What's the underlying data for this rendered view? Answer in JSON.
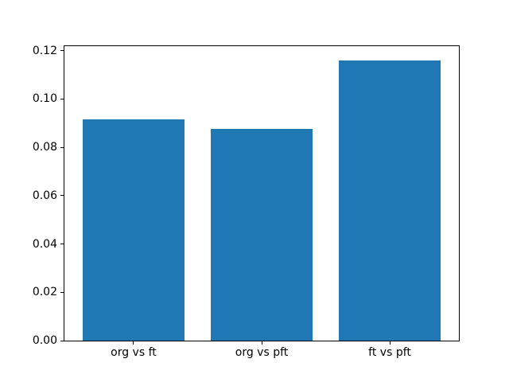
{
  "chart_data": {
    "type": "bar",
    "categories": [
      "org vs ft",
      "org vs pft",
      "ft vs pft"
    ],
    "values": [
      0.0915,
      0.0878,
      0.1161
    ],
    "title": "",
    "xlabel": "",
    "ylabel": "",
    "ylim": [
      0,
      0.1219
    ],
    "xlim": [
      -0.54,
      2.54
    ],
    "yticks": [
      0.0,
      0.02,
      0.04,
      0.06,
      0.08,
      0.1,
      0.12
    ],
    "ytick_labels": [
      "0.00",
      "0.02",
      "0.04",
      "0.06",
      "0.08",
      "0.10",
      "0.12"
    ],
    "bar_width_fraction": 0.8,
    "grid": false,
    "legend_position": "none",
    "bar_color": "#1f77b4"
  },
  "colors": {
    "bar": "#1f77b4",
    "spine": "#000000",
    "background": "#ffffff",
    "text": "#000000"
  }
}
